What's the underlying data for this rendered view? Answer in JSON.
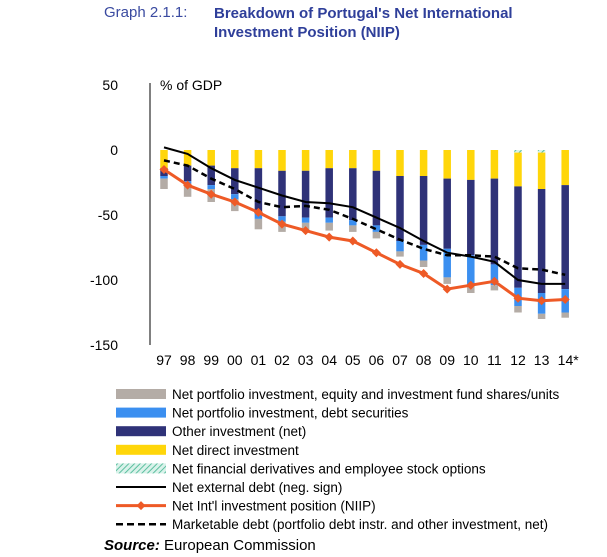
{
  "header": {
    "prefix": "Graph 2.1.1:",
    "title": "Breakdown of Portugal's Net International Investment Position (NIIP)"
  },
  "source": {
    "label": "Source:",
    "text": "European Commission"
  },
  "colors": {
    "portfolio_equity": "#b4aca6",
    "portfolio_debt": "#3b8ff0",
    "other_investment": "#2f3278",
    "direct_investment": "#ffd60a",
    "financial_derivatives": "#8fd3bf",
    "net_external_debt": "#000000",
    "niip": "#ee5a26",
    "marketable_debt": "#000000"
  },
  "chart_data": {
    "type": "bar",
    "stacked": true,
    "ylabel": "% of GDP",
    "ylim": [
      -150,
      50
    ],
    "yticks": [
      50,
      0,
      -50,
      -100,
      -150
    ],
    "categories": [
      "97",
      "98",
      "99",
      "00",
      "01",
      "02",
      "03",
      "04",
      "05",
      "06",
      "07",
      "08",
      "09",
      "10",
      "11",
      "12",
      "13",
      "14*"
    ],
    "series": [
      {
        "name": "Net portfolio investment, equity and investment fund shares/units",
        "kind": "bar",
        "values": [
          -8,
          -10,
          -10,
          -9,
          -8,
          -8,
          -6,
          -6,
          -5,
          -5,
          -4,
          -5,
          -5,
          -5,
          -4,
          -5,
          -4,
          -4
        ]
      },
      {
        "name": "Net portfolio investment, debt securities",
        "kind": "bar",
        "values": [
          -2,
          -2,
          -3,
          -4,
          -4,
          -4,
          -4,
          -4,
          -4,
          -5,
          -8,
          -12,
          -22,
          -24,
          -16,
          -14,
          -16,
          -18
        ]
      },
      {
        "name": "Other investment (net)",
        "kind": "bar",
        "values": [
          -6,
          -12,
          -15,
          -20,
          -35,
          -35,
          -36,
          -38,
          -40,
          -42,
          -50,
          -53,
          -54,
          -58,
          -66,
          -78,
          -80,
          -80
        ]
      },
      {
        "name": "Net direct investment",
        "kind": "bar",
        "values": [
          -14,
          -12,
          -12,
          -14,
          -14,
          -16,
          -16,
          -14,
          -14,
          -16,
          -20,
          -20,
          -22,
          -23,
          -22,
          -26,
          -28,
          -27
        ]
      },
      {
        "name": "Net financial derivatives and employee stock options",
        "kind": "bar",
        "values": [
          0,
          0,
          0,
          0,
          0,
          0,
          0,
          0,
          0,
          0,
          0,
          0,
          0,
          0,
          0,
          -2,
          -2,
          0
        ]
      },
      {
        "name": "Net external debt (neg. sign)",
        "kind": "line",
        "values": [
          2,
          -3,
          -14,
          -23,
          -29,
          -35,
          -40,
          -41,
          -44,
          -52,
          -60,
          -70,
          -79,
          -82,
          -86,
          -100,
          -103,
          -103
        ]
      },
      {
        "name": "Net Int'l investment position (NIIP)",
        "kind": "line",
        "values": [
          -15,
          -27,
          -34,
          -40,
          -48,
          -57,
          -62,
          -67,
          -70,
          -79,
          -88,
          -95,
          -107,
          -104,
          -101,
          -114,
          -116,
          -115
        ]
      },
      {
        "name": "Marketable debt (portfolio debt instr. and other investment, net)",
        "kind": "line",
        "values": [
          -8,
          -12,
          -22,
          -30,
          -40,
          -44,
          -43,
          -46,
          -53,
          -61,
          -69,
          -76,
          -81,
          -81,
          -82,
          -91,
          -92,
          -96
        ]
      }
    ]
  }
}
